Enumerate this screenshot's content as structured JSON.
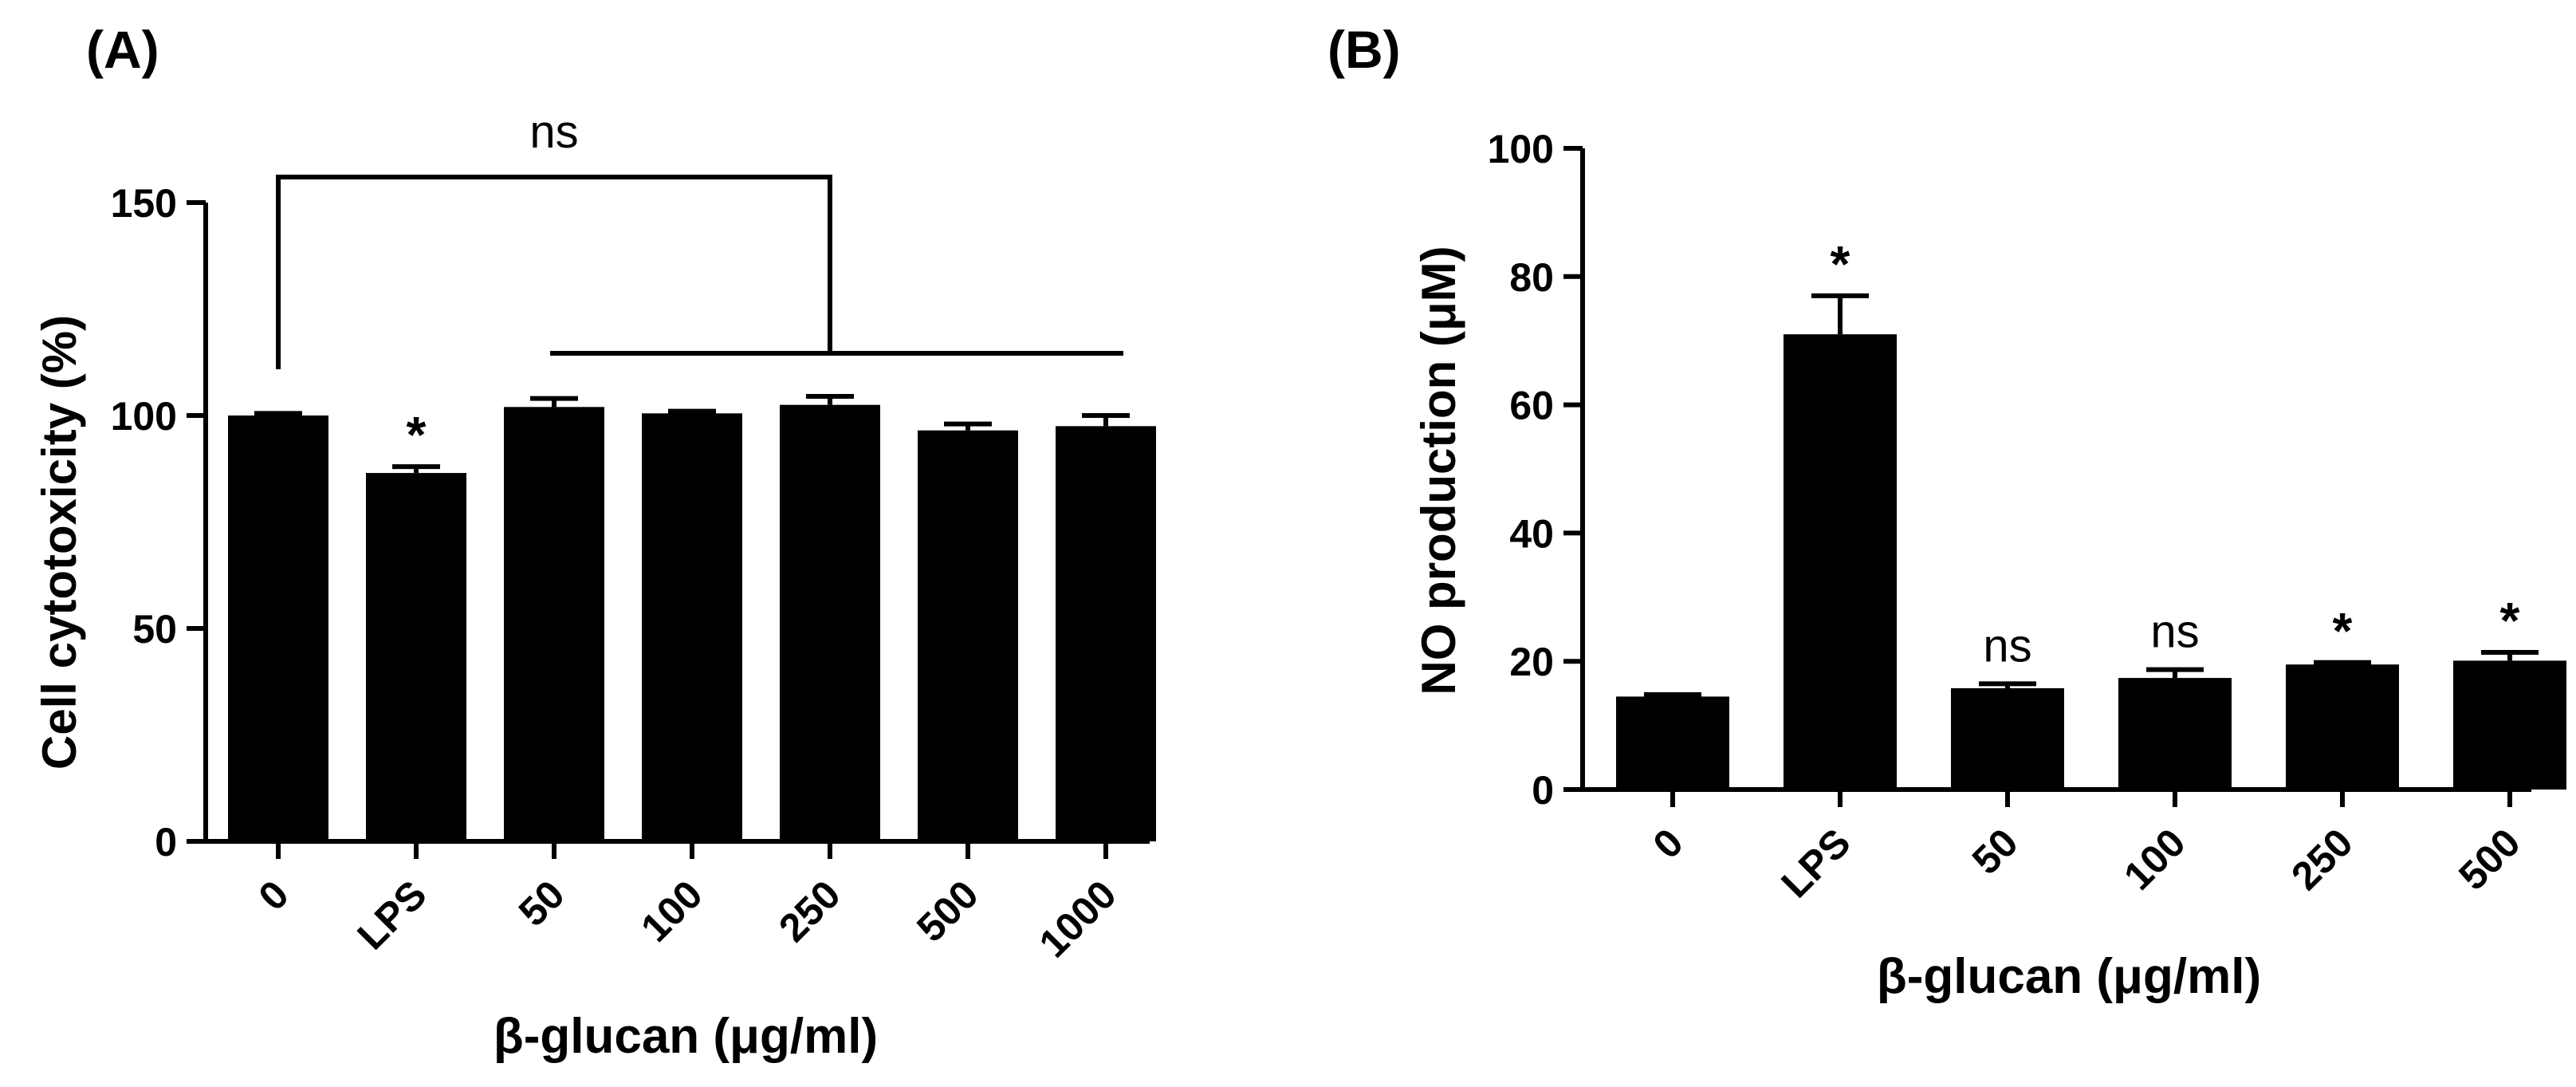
{
  "chart_data": [
    {
      "type": "bar",
      "panel_label": "(A)",
      "categories": [
        "0",
        "LPS",
        "50",
        "100",
        "250",
        "500",
        "1000"
      ],
      "values": [
        100,
        86.5,
        102,
        100.5,
        102.5,
        96.5,
        97.5
      ],
      "errors": [
        0.5,
        1.5,
        2,
        0.5,
        2,
        1.5,
        2.5
      ],
      "annotations": [
        "",
        "*",
        "",
        "",
        "",
        "",
        ""
      ],
      "ylabel": "Cell cytotoxicity (%)",
      "xlabel": "β-glucan (μg/ml)",
      "ylim": [
        0,
        150
      ],
      "yticks": [
        "0",
        "50",
        "100",
        "150"
      ],
      "bracket": {
        "label": "ns",
        "from": "0",
        "to": [
          "50",
          "1000"
        ]
      }
    },
    {
      "type": "bar",
      "panel_label": "(B)",
      "categories": [
        "0",
        "LPS",
        "50",
        "100",
        "250",
        "500"
      ],
      "values": [
        14.5,
        71,
        15.8,
        17.4,
        19.5,
        20.1
      ],
      "errors": [
        0.3,
        6,
        0.7,
        1.3,
        0.3,
        1.3
      ],
      "annotations": [
        "",
        "*",
        "ns",
        "ns",
        "*",
        "*"
      ],
      "ylabel": "NO production (μM)",
      "xlabel": "β-glucan (μg/ml)",
      "ylim": [
        0,
        100
      ],
      "yticks": [
        "0",
        "20",
        "40",
        "60",
        "80",
        "100"
      ]
    }
  ]
}
